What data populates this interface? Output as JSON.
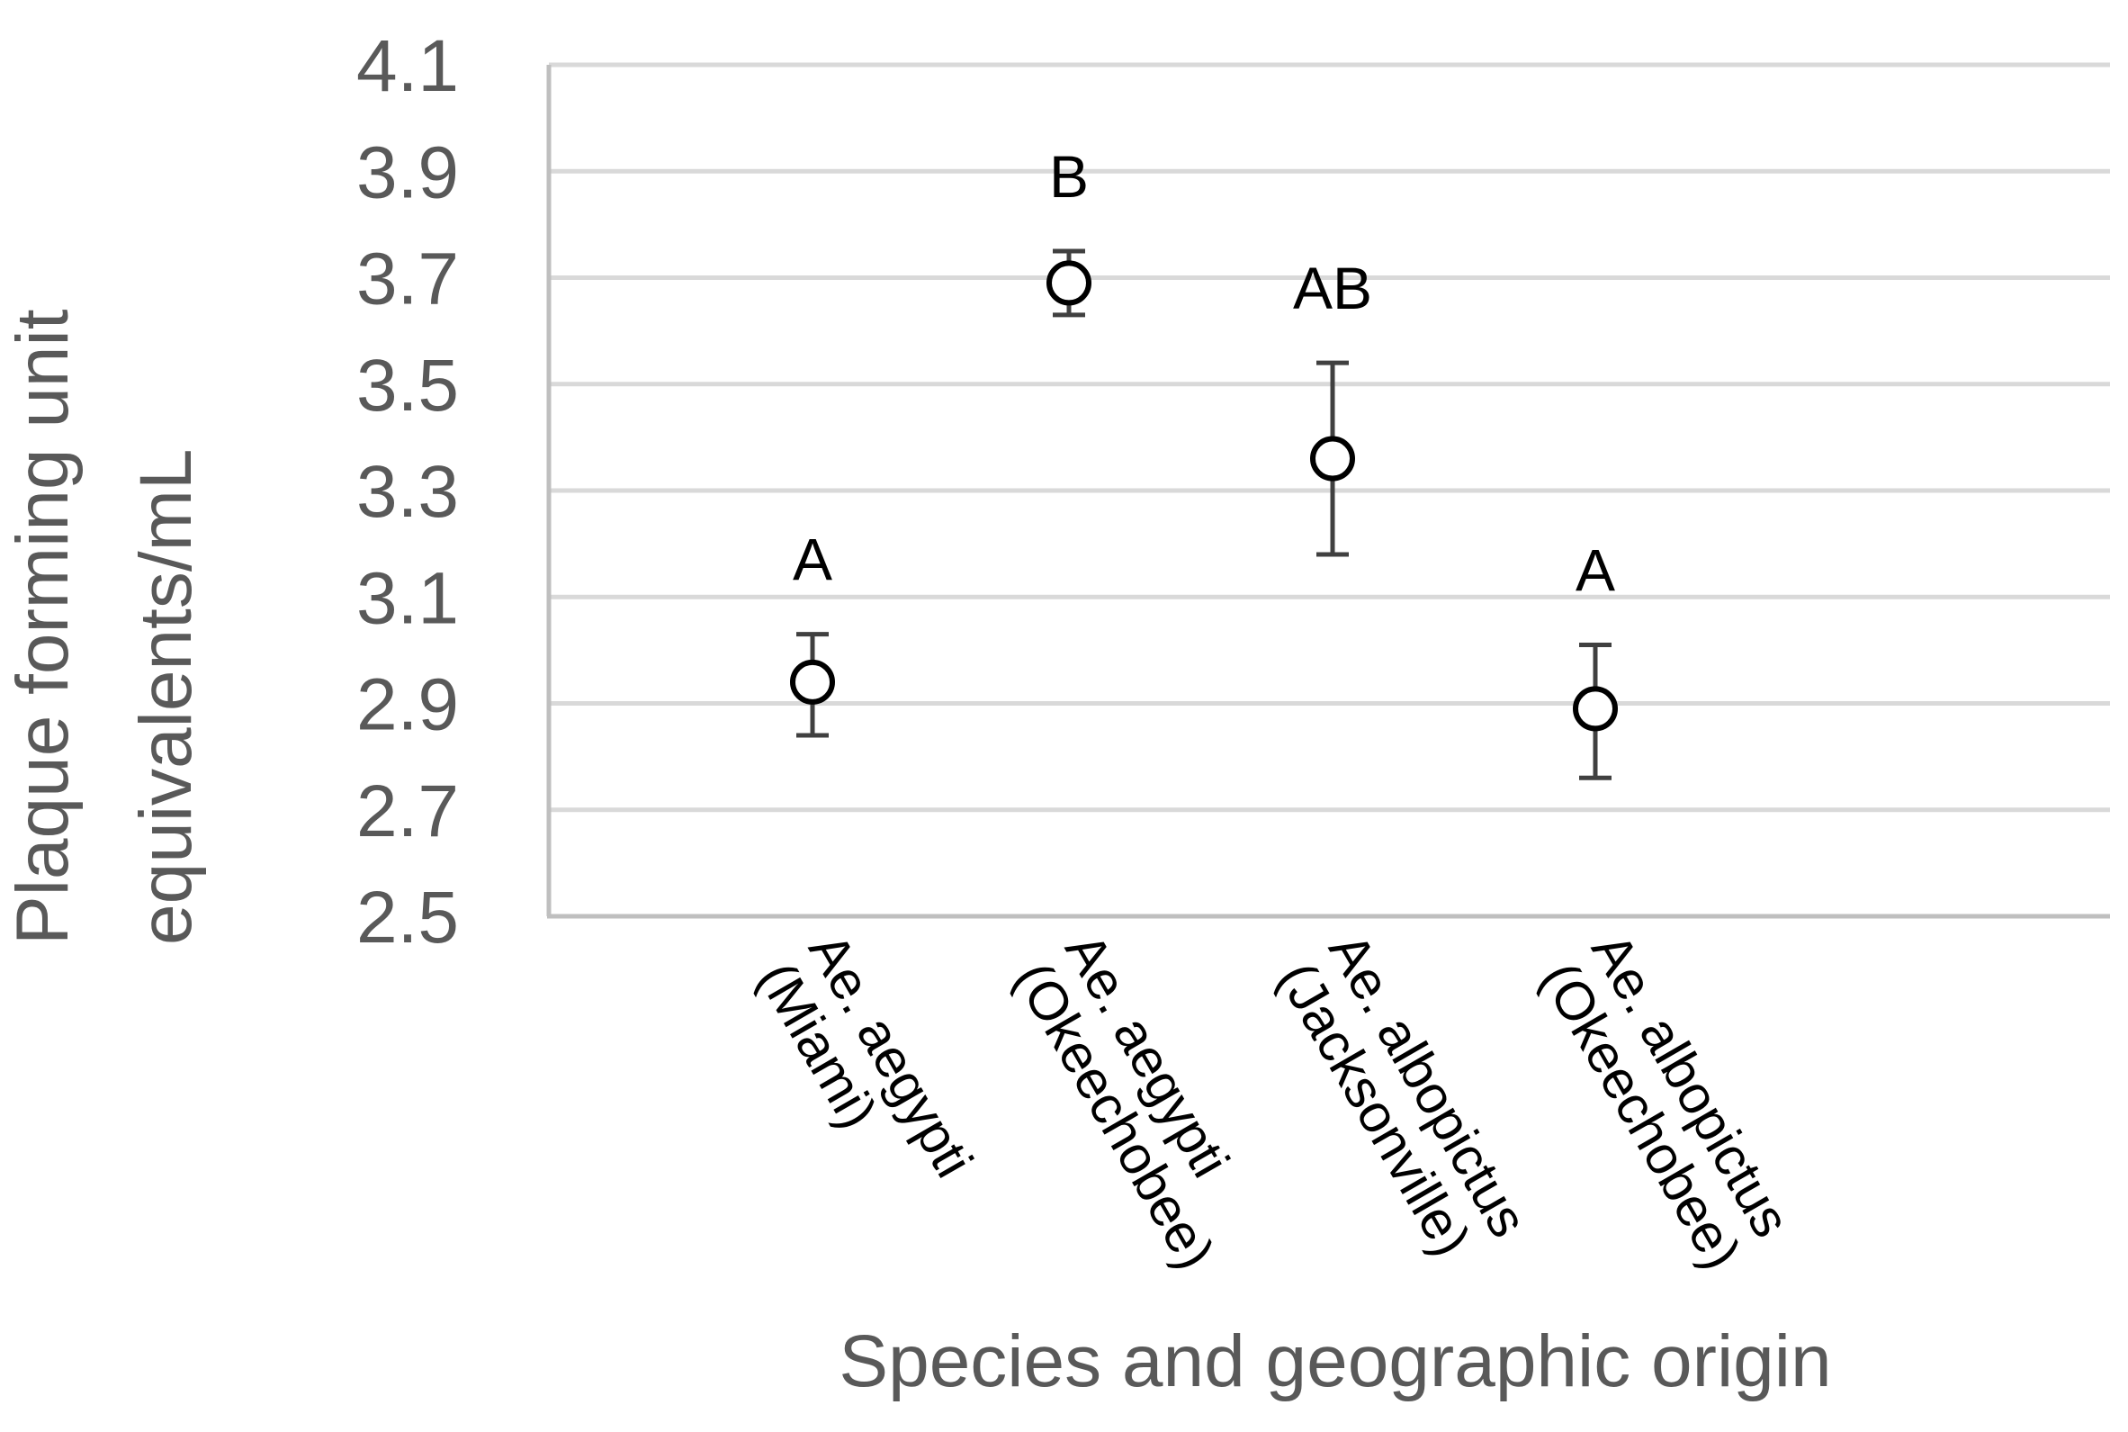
{
  "chart_data": {
    "type": "scatter",
    "title": "",
    "xlabel": "Species and geographic origin",
    "ylabel_lines": [
      "Plaque forming unit",
      "equivalents/mL"
    ],
    "ylim": [
      2.5,
      4.1
    ],
    "yticks": [
      "2.5",
      "2.7",
      "2.9",
      "3.1",
      "3.3",
      "3.5",
      "3.7",
      "3.9",
      "4.1"
    ],
    "grid": true,
    "categories": [
      {
        "line1": "Ae. aegypti",
        "line2": "(Miami)"
      },
      {
        "line1": "Ae. aegypti",
        "line2": "(Okeechobee)"
      },
      {
        "line1": "Ae. albopictus",
        "line2": "(Jacksonville)"
      },
      {
        "line1": "Ae. albopictus",
        "line2": "(Okeechobee)"
      }
    ],
    "values": [
      2.94,
      3.69,
      3.36,
      2.89
    ],
    "error_upper": [
      3.03,
      3.75,
      3.54,
      3.01
    ],
    "error_lower": [
      2.84,
      3.63,
      3.18,
      2.76
    ],
    "significance_letters": [
      "A",
      "B",
      "AB",
      "A"
    ],
    "colors": {
      "marker": "#000000",
      "marker_fill": "#ffffff",
      "error_bar": "#404040",
      "grid": "#d9d9d9",
      "axis": "#bfbfbf",
      "tick_text": "#595959",
      "label_text": "#595959",
      "category_text": "#000000"
    }
  }
}
